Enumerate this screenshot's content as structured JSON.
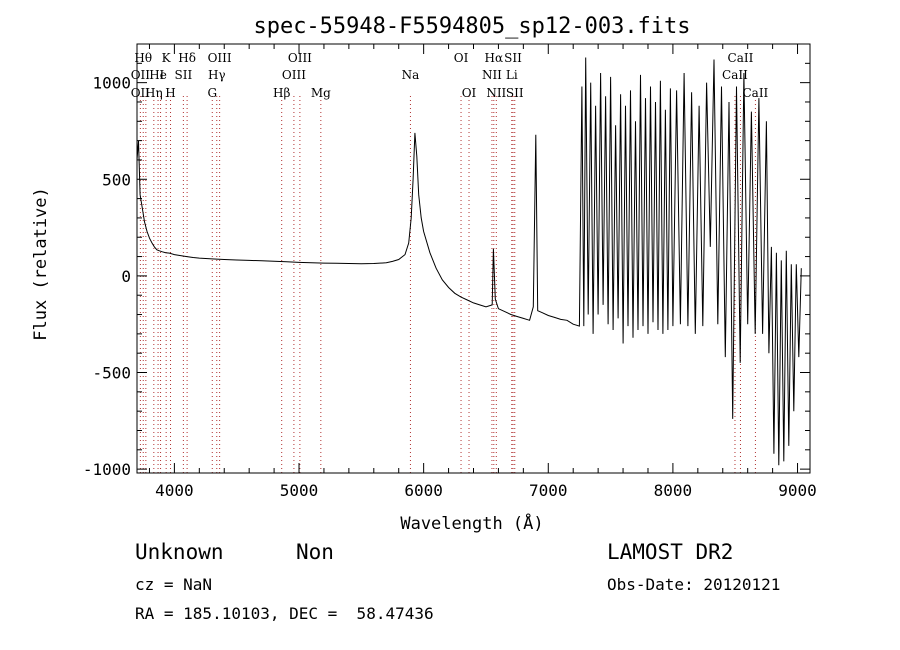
{
  "chart_data": {
    "type": "line",
    "title": "spec-55948-F5594805_sp12-003.fits",
    "xlabel": "Wavelength (Å)",
    "ylabel": "Flux (relative)",
    "xlim": [
      3700,
      9100
    ],
    "ylim": [
      -1020,
      1200
    ],
    "x_ticks": [
      4000,
      5000,
      6000,
      7000,
      8000,
      9000
    ],
    "y_ticks": [
      -1000,
      -500,
      0,
      500,
      1000
    ],
    "grid": false,
    "series": [
      {
        "points": [
          [
            3700,
            600
          ],
          [
            3712,
            700
          ],
          [
            3725,
            420
          ],
          [
            3740,
            360
          ],
          [
            3760,
            280
          ],
          [
            3780,
            230
          ],
          [
            3800,
            195
          ],
          [
            3820,
            170
          ],
          [
            3840,
            150
          ],
          [
            3860,
            135
          ],
          [
            3880,
            130
          ],
          [
            3900,
            125
          ],
          [
            3930,
            120
          ],
          [
            3960,
            118
          ],
          [
            4000,
            110
          ],
          [
            4050,
            105
          ],
          [
            4100,
            100
          ],
          [
            4150,
            95
          ],
          [
            4200,
            92
          ],
          [
            4300,
            88
          ],
          [
            4400,
            85
          ],
          [
            4500,
            82
          ],
          [
            4600,
            80
          ],
          [
            4700,
            78
          ],
          [
            4800,
            76
          ],
          [
            4900,
            73
          ],
          [
            5000,
            70
          ],
          [
            5100,
            68
          ],
          [
            5200,
            66
          ],
          [
            5300,
            65
          ],
          [
            5400,
            64
          ],
          [
            5500,
            63
          ],
          [
            5600,
            64
          ],
          [
            5700,
            68
          ],
          [
            5750,
            75
          ],
          [
            5800,
            85
          ],
          [
            5850,
            110
          ],
          [
            5880,
            170
          ],
          [
            5900,
            300
          ],
          [
            5915,
            500
          ],
          [
            5930,
            740
          ],
          [
            5945,
            620
          ],
          [
            5960,
            420
          ],
          [
            5980,
            300
          ],
          [
            6000,
            230
          ],
          [
            6050,
            120
          ],
          [
            6100,
            40
          ],
          [
            6150,
            -20
          ],
          [
            6200,
            -60
          ],
          [
            6250,
            -90
          ],
          [
            6300,
            -110
          ],
          [
            6350,
            -125
          ],
          [
            6400,
            -140
          ],
          [
            6450,
            -150
          ],
          [
            6500,
            -160
          ],
          [
            6550,
            -150
          ],
          [
            6560,
            140
          ],
          [
            6575,
            -120
          ],
          [
            6600,
            -170
          ],
          [
            6650,
            -185
          ],
          [
            6700,
            -200
          ],
          [
            6750,
            -210
          ],
          [
            6800,
            -220
          ],
          [
            6850,
            -230
          ],
          [
            6880,
            -160
          ],
          [
            6900,
            730
          ],
          [
            6915,
            -180
          ],
          [
            6950,
            -190
          ],
          [
            7000,
            -205
          ],
          [
            7050,
            -215
          ],
          [
            7100,
            -225
          ],
          [
            7150,
            -230
          ],
          [
            7200,
            -250
          ],
          [
            7250,
            -260
          ],
          [
            7270,
            980
          ],
          [
            7285,
            -260
          ],
          [
            7300,
            1130
          ],
          [
            7320,
            -200
          ],
          [
            7340,
            1000
          ],
          [
            7360,
            -300
          ],
          [
            7380,
            880
          ],
          [
            7400,
            -200
          ],
          [
            7420,
            1050
          ],
          [
            7440,
            -150
          ],
          [
            7460,
            930
          ],
          [
            7480,
            -250
          ],
          [
            7500,
            1030
          ],
          [
            7520,
            -280
          ],
          [
            7540,
            780
          ],
          [
            7560,
            -220
          ],
          [
            7580,
            940
          ],
          [
            7600,
            -350
          ],
          [
            7620,
            880
          ],
          [
            7640,
            -260
          ],
          [
            7660,
            960
          ],
          [
            7680,
            -320
          ],
          [
            7700,
            800
          ],
          [
            7720,
            -280
          ],
          [
            7740,
            1040
          ],
          [
            7760,
            -260
          ],
          [
            7780,
            920
          ],
          [
            7800,
            -300
          ],
          [
            7820,
            980
          ],
          [
            7840,
            -240
          ],
          [
            7860,
            900
          ],
          [
            7880,
            -280
          ],
          [
            7900,
            1010
          ],
          [
            7920,
            -300
          ],
          [
            7940,
            860
          ],
          [
            7960,
            -280
          ],
          [
            7980,
            970
          ],
          [
            8000,
            -260
          ],
          [
            8030,
            960
          ],
          [
            8060,
            -250
          ],
          [
            8090,
            1050
          ],
          [
            8120,
            -260
          ],
          [
            8150,
            950
          ],
          [
            8180,
            -300
          ],
          [
            8210,
            880
          ],
          [
            8240,
            -260
          ],
          [
            8270,
            1000
          ],
          [
            8300,
            150
          ],
          [
            8330,
            1120
          ],
          [
            8360,
            -250
          ],
          [
            8390,
            980
          ],
          [
            8420,
            -420
          ],
          [
            8450,
            900
          ],
          [
            8480,
            -740
          ],
          [
            8510,
            980
          ],
          [
            8540,
            -450
          ],
          [
            8570,
            1050
          ],
          [
            8600,
            -250
          ],
          [
            8630,
            850
          ],
          [
            8660,
            -300
          ],
          [
            8690,
            920
          ],
          [
            8720,
            -300
          ],
          [
            8750,
            800
          ],
          [
            8770,
            -400
          ],
          [
            8790,
            150
          ],
          [
            8810,
            -920
          ],
          [
            8830,
            120
          ],
          [
            8850,
            -980
          ],
          [
            8870,
            80
          ],
          [
            8890,
            -960
          ],
          [
            8910,
            130
          ],
          [
            8930,
            -880
          ],
          [
            8950,
            60
          ],
          [
            8970,
            -700
          ],
          [
            8990,
            60
          ],
          [
            9010,
            -420
          ],
          [
            9030,
            40
          ]
        ]
      }
    ],
    "line_markers": [
      {
        "wl": 3727,
        "labels": [
          "OII"
        ]
      },
      {
        "wl": 3750,
        "labels": [
          "Hθ"
        ]
      },
      {
        "wl": 3771,
        "labels": [
          "Hη"
        ]
      },
      {
        "wl": 3835,
        "labels": [
          "Hη"
        ]
      },
      {
        "wl": 3869,
        "labels": [
          "He"
        ]
      },
      {
        "wl": 3889,
        "labels": [
          "He"
        ]
      },
      {
        "wl": 3934,
        "labels": [
          "K"
        ]
      },
      {
        "wl": 3969,
        "labels": [
          "H"
        ]
      },
      {
        "wl": 4072,
        "labels": [
          "SII"
        ]
      },
      {
        "wl": 4102,
        "labels": [
          "Hδ"
        ]
      },
      {
        "wl": 4304,
        "labels": [
          "G"
        ]
      },
      {
        "wl": 4340,
        "labels": [
          "Hγ"
        ]
      },
      {
        "wl": 4363,
        "labels": [
          "OIII"
        ]
      },
      {
        "wl": 4861,
        "labels": [
          "Hβ"
        ]
      },
      {
        "wl": 4959,
        "labels": [
          "OIII"
        ]
      },
      {
        "wl": 5007,
        "labels": [
          "OIII"
        ]
      },
      {
        "wl": 5175,
        "labels": [
          "Mg"
        ]
      },
      {
        "wl": 5894,
        "labels": [
          "Na"
        ]
      },
      {
        "wl": 6300,
        "labels": [
          "OI"
        ]
      },
      {
        "wl": 6364,
        "labels": [
          "OI"
        ]
      },
      {
        "wl": 6548,
        "labels": [
          "NII"
        ]
      },
      {
        "wl": 6563,
        "labels": [
          "Hα"
        ]
      },
      {
        "wl": 6583,
        "labels": [
          "NII"
        ]
      },
      {
        "wl": 6707,
        "labels": [
          "Li"
        ]
      },
      {
        "wl": 6717,
        "labels": [
          "SII"
        ]
      },
      {
        "wl": 6731,
        "labels": [
          "SII"
        ]
      },
      {
        "wl": 8498,
        "labels": [
          "CaII"
        ]
      },
      {
        "wl": 8542,
        "labels": [
          "CaII"
        ]
      },
      {
        "wl": 8662,
        "labels": [
          "CaII"
        ]
      }
    ],
    "line_labels": [
      {
        "text": "Hθ",
        "wl": 3750,
        "row": 0
      },
      {
        "text": "K",
        "wl": 3934,
        "row": 0
      },
      {
        "text": "Hδ",
        "wl": 4102,
        "row": 0
      },
      {
        "text": "OIII",
        "wl": 4363,
        "row": 0
      },
      {
        "text": "OIII",
        "wl": 5007,
        "row": 0
      },
      {
        "text": "OI",
        "wl": 6300,
        "row": 0
      },
      {
        "text": "Hα",
        "wl": 6563,
        "row": 0
      },
      {
        "text": "SII",
        "wl": 6717,
        "row": 0
      },
      {
        "text": "CaII",
        "wl": 8542,
        "row": 0
      },
      {
        "text": "OII",
        "wl": 3727,
        "row": 1
      },
      {
        "text": "He",
        "wl": 3869,
        "row": 1
      },
      {
        "text": "I",
        "wl": 3900,
        "row": 1
      },
      {
        "text": "SII",
        "wl": 4072,
        "row": 1
      },
      {
        "text": "Hγ",
        "wl": 4340,
        "row": 1
      },
      {
        "text": "OIII",
        "wl": 4959,
        "row": 1
      },
      {
        "text": "Na",
        "wl": 5894,
        "row": 1
      },
      {
        "text": "NII",
        "wl": 6548,
        "row": 1
      },
      {
        "text": "Li",
        "wl": 6707,
        "row": 1
      },
      {
        "text": "CaII",
        "wl": 8498,
        "row": 1
      },
      {
        "text": "OII",
        "wl": 3727,
        "row": 2
      },
      {
        "text": "Hη",
        "wl": 3835,
        "row": 2
      },
      {
        "text": "H",
        "wl": 3969,
        "row": 2
      },
      {
        "text": "G",
        "wl": 4304,
        "row": 2
      },
      {
        "text": "Hβ",
        "wl": 4861,
        "row": 2
      },
      {
        "text": "Mg",
        "wl": 5175,
        "row": 2
      },
      {
        "text": "OI",
        "wl": 6364,
        "row": 2
      },
      {
        "text": "NII",
        "wl": 6583,
        "row": 2
      },
      {
        "text": "SII",
        "wl": 6731,
        "row": 2
      },
      {
        "text": "CaII",
        "wl": 8662,
        "row": 2
      }
    ],
    "colors": {
      "line": "#000000",
      "marker": "#b03030",
      "axis": "#000000"
    }
  },
  "footer": {
    "class_label": "Unknown",
    "subclass_label": "Non",
    "survey": "LAMOST DR2",
    "cz": "cz = NaN",
    "obs_date": "Obs-Date: 20120121",
    "coords": "RA = 185.10103, DEC =  58.47436"
  }
}
